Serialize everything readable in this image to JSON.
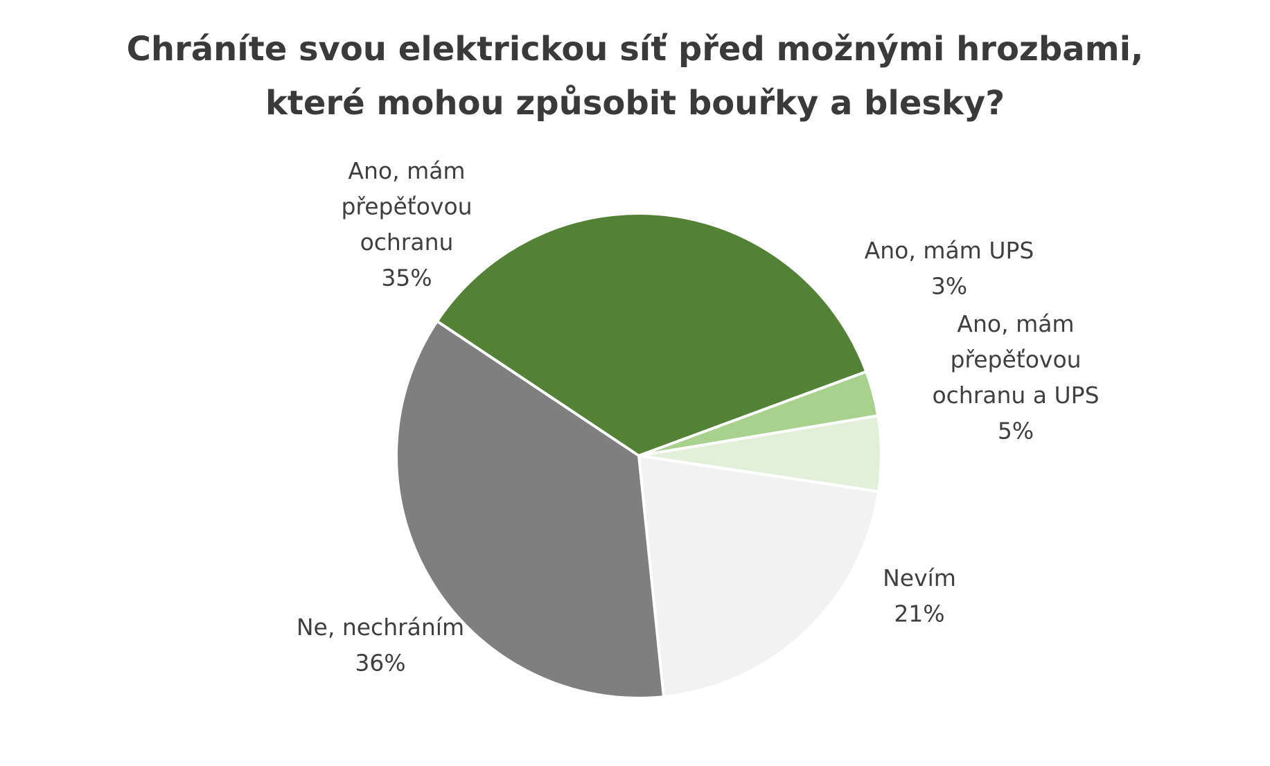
{
  "chart_data": {
    "type": "pie",
    "title": "Chráníte svou elektrickou síť před možnými hrozbami, které mohou způsobit bouřky a blesky?",
    "title_lines": [
      "Chráníte svou elektrickou síť před možnými hrozbami,",
      "které mohou způsobit bouřky a blesky?"
    ],
    "slices": [
      {
        "label": "Ano, mám přepěťovou ochranu",
        "label_lines": [
          "Ano, mám",
          "přepěťovou",
          "ochranu"
        ],
        "value": 35,
        "display": "35%",
        "color": "#538135"
      },
      {
        "label": "Ano, mám UPS",
        "label_lines": [
          "Ano, mám UPS"
        ],
        "value": 3,
        "display": "3%",
        "color": "#a9d18e"
      },
      {
        "label": "Ano, mám přepěťovou ochranu a UPS",
        "label_lines": [
          "Ano, mám",
          "přepěťovou",
          "ochranu a UPS"
        ],
        "value": 5,
        "display": "5%",
        "color": "#e2efd9"
      },
      {
        "label": "Nevím",
        "label_lines": [
          "Nevím"
        ],
        "value": 21,
        "display": "21%",
        "color": "#f2f2f2"
      },
      {
        "label": "Ne, nechráním",
        "label_lines": [
          "Ne, nechráním"
        ],
        "value": 36,
        "display": "36%",
        "color": "#7f7f7f"
      }
    ],
    "legend": "none",
    "data_labels": "outside"
  }
}
